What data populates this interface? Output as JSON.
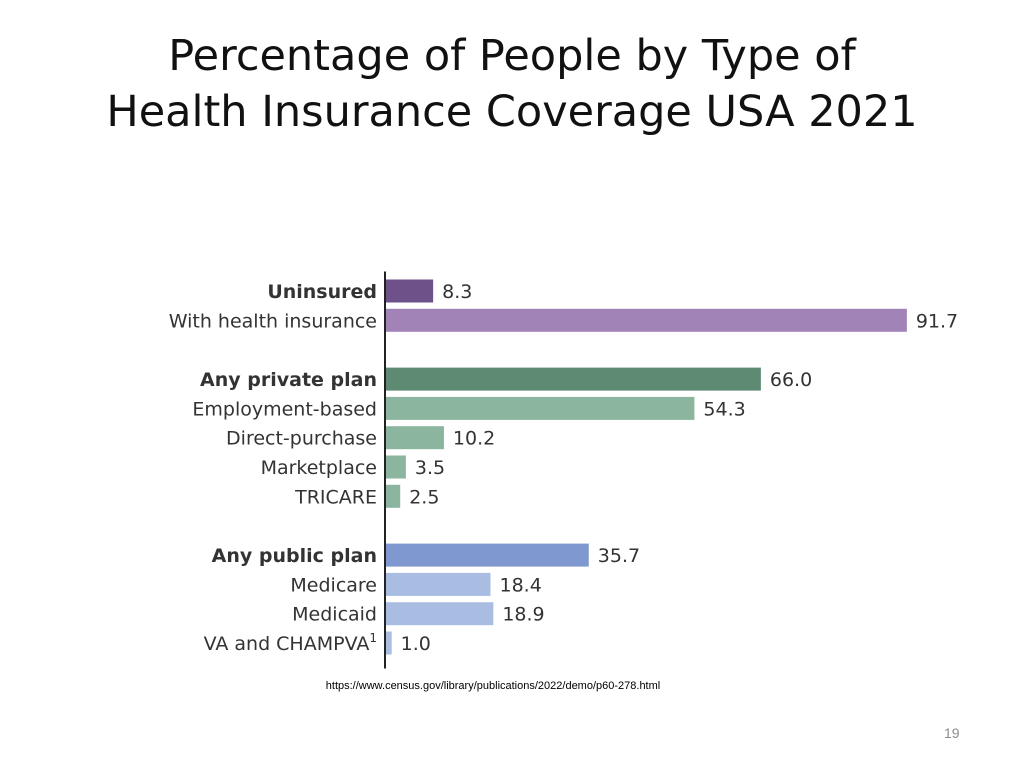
{
  "slide": {
    "title_line1": "Percentage of People by Type of",
    "title_line2": "Health Insurance Coverage USA 2021",
    "source": "https://www.census.gov/library/publications/2022/demo/p60-278.html",
    "page_number": "19"
  },
  "chart_data": {
    "type": "bar",
    "orientation": "horizontal",
    "title": "",
    "xlabel": "",
    "ylabel": "",
    "xlim": [
      0,
      100
    ],
    "grid": false,
    "categories": [
      "Uninsured",
      "With health insurance",
      "Any private plan",
      "Employment-based",
      "Direct-purchase",
      "Marketplace",
      "TRICARE",
      "Any public plan",
      "Medicare",
      "Medicaid",
      "VA and CHAMPVA"
    ],
    "values": [
      8.3,
      91.7,
      66.0,
      54.3,
      10.2,
      3.5,
      2.5,
      35.7,
      18.4,
      18.9,
      1.0
    ],
    "value_labels": [
      "8.3",
      "91.7",
      "66.0",
      "54.3",
      "10.2",
      "3.5",
      "2.5",
      "35.7",
      "18.4",
      "18.9",
      "1.0"
    ],
    "bold": [
      true,
      false,
      true,
      false,
      false,
      false,
      false,
      true,
      false,
      false,
      false
    ],
    "superscripts": [
      "",
      "",
      "",
      "",
      "",
      "",
      "",
      "",
      "",
      "",
      "1"
    ],
    "groups": [
      0,
      0,
      1,
      1,
      1,
      1,
      1,
      2,
      2,
      2,
      2
    ],
    "colors": [
      "#6e5189",
      "#a183b8",
      "#5e8a74",
      "#8bb59f",
      "#8bb59f",
      "#8bb59f",
      "#8bb59f",
      "#7f98cf",
      "#a9bde3",
      "#a9bde3",
      "#a9bde3"
    ],
    "label_color": "#333333",
    "axis_color": "#222222"
  }
}
